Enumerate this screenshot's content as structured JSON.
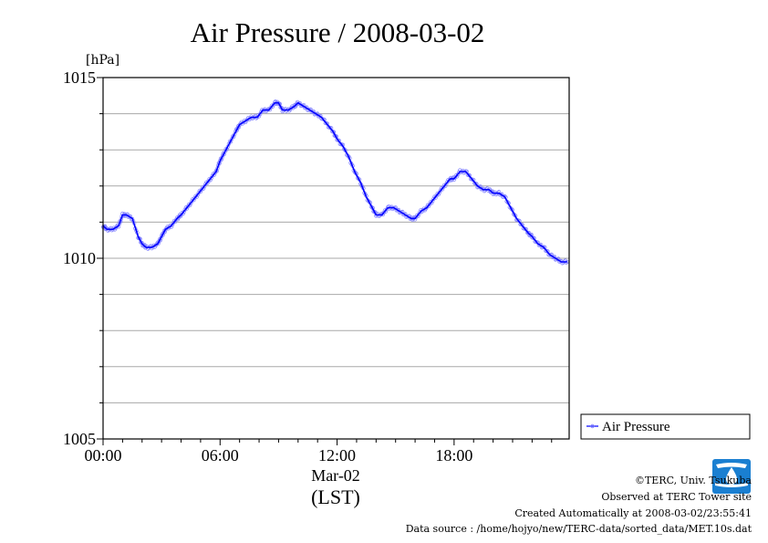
{
  "chart_data": {
    "type": "line",
    "title": "Air Pressure / 2008-03-02",
    "ylabel": "[hPa]",
    "xlabel": "(LST)",
    "x_date_label": "Mar-02",
    "ylim": [
      1005,
      1015
    ],
    "xlim": [
      0,
      23.9
    ],
    "yticks": [
      1005,
      1010,
      1015
    ],
    "ytick_labels": [
      "1005",
      "1010",
      "1015"
    ],
    "yminor": [
      1006,
      1007,
      1008,
      1009,
      1011,
      1012,
      1013,
      1014
    ],
    "xticks": [
      0,
      6,
      12,
      18
    ],
    "xtick_labels": [
      "00:00",
      "06:00",
      "12:00",
      "18:00"
    ],
    "grid": true,
    "legend_position": "bottom-right, outside plot",
    "series": [
      {
        "name": "Air Pressure",
        "color": "#0000ff",
        "marker_color": "#8080ff",
        "x": [
          0,
          0.2,
          0.5,
          0.8,
          1.0,
          1.2,
          1.5,
          1.8,
          2.0,
          2.2,
          2.5,
          2.8,
          3.0,
          3.2,
          3.5,
          3.8,
          4.0,
          4.3,
          4.6,
          4.9,
          5.2,
          5.5,
          5.8,
          6.0,
          6.2,
          6.5,
          6.8,
          7.0,
          7.3,
          7.6,
          7.9,
          8.2,
          8.5,
          8.8,
          9.0,
          9.2,
          9.5,
          9.8,
          10.0,
          10.3,
          10.6,
          10.9,
          11.2,
          11.5,
          11.8,
          12.0,
          12.3,
          12.6,
          12.9,
          13.2,
          13.5,
          13.8,
          14.0,
          14.3,
          14.6,
          14.9,
          15.2,
          15.5,
          15.8,
          16.0,
          16.3,
          16.6,
          16.9,
          17.2,
          17.5,
          17.8,
          18.0,
          18.3,
          18.6,
          18.9,
          19.2,
          19.5,
          19.8,
          20.0,
          20.3,
          20.6,
          20.9,
          21.2,
          21.5,
          21.8,
          22.0,
          22.3,
          22.6,
          22.9,
          23.2,
          23.5,
          23.8
        ],
        "values": [
          1010.9,
          1010.8,
          1010.8,
          1010.9,
          1011.2,
          1011.2,
          1011.1,
          1010.6,
          1010.4,
          1010.3,
          1010.3,
          1010.4,
          1010.6,
          1010.8,
          1010.9,
          1011.1,
          1011.2,
          1011.4,
          1011.6,
          1011.8,
          1012.0,
          1012.2,
          1012.4,
          1012.7,
          1012.9,
          1013.2,
          1013.5,
          1013.7,
          1013.8,
          1013.9,
          1013.9,
          1014.1,
          1014.1,
          1014.3,
          1014.3,
          1014.1,
          1014.1,
          1014.2,
          1014.3,
          1014.2,
          1014.1,
          1014.0,
          1013.9,
          1013.7,
          1013.5,
          1013.3,
          1013.1,
          1012.8,
          1012.4,
          1012.1,
          1011.7,
          1011.4,
          1011.2,
          1011.2,
          1011.4,
          1011.4,
          1011.3,
          1011.2,
          1011.1,
          1011.1,
          1011.3,
          1011.4,
          1011.6,
          1011.8,
          1012.0,
          1012.2,
          1012.2,
          1012.4,
          1012.4,
          1012.2,
          1012.0,
          1011.9,
          1011.9,
          1011.8,
          1011.8,
          1011.7,
          1011.4,
          1011.1,
          1010.9,
          1010.7,
          1010.6,
          1010.4,
          1010.3,
          1010.1,
          1010.0,
          1009.9,
          1009.9
        ]
      }
    ]
  },
  "footer": {
    "copyright": "©TERC, Univ. Tsukuba",
    "observed": "Observed at TERC Tower site",
    "created": "Created Automatically at 2008-03-02/23:55:41",
    "source": "Data source : /home/hojyo/new/TERC-data/sorted_data/MET.10s.dat"
  },
  "logo": {
    "text": "TERC",
    "color": "#1a7fd1"
  }
}
